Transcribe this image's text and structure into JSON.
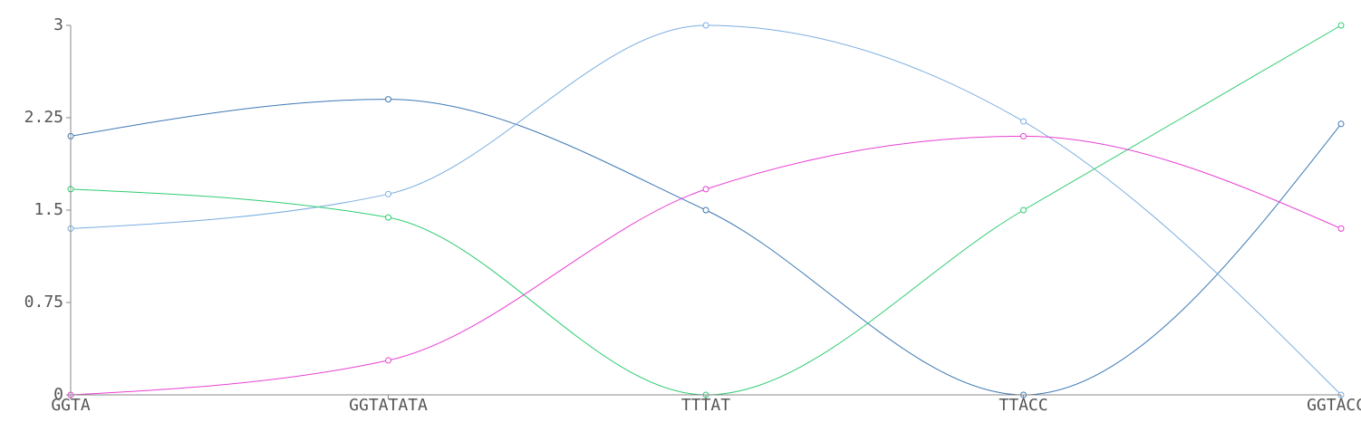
{
  "chart_data": {
    "type": "line",
    "title": "",
    "xlabel": "",
    "ylabel": "",
    "categories": [
      "GGTA",
      "GGTATATA",
      "TTTAT",
      "TTACC",
      "GGTACCA"
    ],
    "y_ticks": [
      "0",
      "0.75",
      "1.5",
      "2.25",
      "3"
    ],
    "ylim": [
      0,
      3
    ],
    "grid": false,
    "legend": "none",
    "curve": "smooth",
    "series": [
      {
        "color": "#3c78b4",
        "values": [
          2.1,
          2.4,
          1.5,
          0,
          2.2
        ]
      },
      {
        "color": "#7aaee0",
        "values": [
          1.35,
          1.63,
          3.0,
          2.22,
          0
        ]
      },
      {
        "color": "#2ecc71",
        "values": [
          1.67,
          1.44,
          0,
          1.5,
          3.0
        ]
      },
      {
        "color": "#e83fd4",
        "values": [
          0,
          0.28,
          1.67,
          2.1,
          1.35
        ]
      }
    ]
  }
}
